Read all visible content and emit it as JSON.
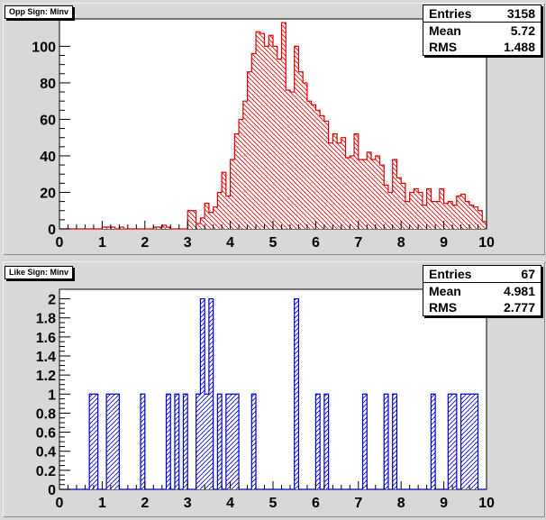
{
  "chart_data": [
    {
      "type": "histogram",
      "title": "Opp Sign: Minv",
      "stats": {
        "entries_label": "Entries",
        "entries": "3158",
        "mean_label": "Mean",
        "mean": "5.72",
        "rms_label": "RMS",
        "rms": "1.488"
      },
      "xlim": [
        0,
        10
      ],
      "ylim": [
        0,
        115
      ],
      "bin_width": 0.1,
      "xticks": [
        "0",
        "1",
        "2",
        "3",
        "4",
        "5",
        "6",
        "7",
        "8",
        "9",
        "10"
      ],
      "yticks": [
        "0",
        "20",
        "40",
        "60",
        "80",
        "100"
      ],
      "ytick_values": [
        0,
        20,
        40,
        60,
        80,
        100
      ],
      "color": "#dd0000",
      "values": [
        0,
        0,
        0,
        0,
        0,
        0,
        0,
        0,
        0,
        0,
        1,
        1,
        1,
        0,
        1,
        0,
        0,
        0,
        0,
        0,
        0,
        0,
        1,
        1,
        2,
        1,
        0,
        0,
        0,
        0,
        10,
        10,
        3,
        6,
        14,
        9,
        12,
        20,
        31,
        18,
        38,
        52,
        60,
        70,
        86,
        96,
        108,
        107,
        100,
        106,
        100,
        93,
        113,
        76,
        75,
        100,
        86,
        80,
        70,
        68,
        65,
        62,
        59,
        47,
        52,
        47,
        50,
        39,
        40,
        52,
        38,
        38,
        42,
        38,
        40,
        35,
        24,
        20,
        38,
        28,
        25,
        15,
        20,
        22,
        20,
        13,
        22,
        15,
        15,
        22,
        14,
        15,
        13,
        18,
        19,
        15,
        13,
        12,
        10,
        4
      ]
    },
    {
      "type": "histogram",
      "title": "Like Sign: Minv",
      "stats": {
        "entries_label": "Entries",
        "entries": "67",
        "mean_label": "Mean",
        "mean": "4.981",
        "rms_label": "RMS",
        "rms": "2.777"
      },
      "xlim": [
        0,
        10
      ],
      "ylim": [
        0,
        2.1
      ],
      "bin_width": 0.1,
      "xticks": [
        "0",
        "1",
        "2",
        "3",
        "4",
        "5",
        "6",
        "7",
        "8",
        "9",
        "10"
      ],
      "yticks": [
        "0",
        "0.2",
        "0.4",
        "0.6",
        "0.8",
        "1",
        "1.2",
        "1.4",
        "1.6",
        "1.8",
        "2"
      ],
      "ytick_values": [
        0,
        0.2,
        0.4,
        0.6,
        0.8,
        1,
        1.2,
        1.4,
        1.6,
        1.8,
        2
      ],
      "color": "#0000cc",
      "values": [
        0,
        0,
        0,
        0,
        0,
        0,
        0,
        1,
        1,
        0,
        0,
        1,
        1,
        1,
        0,
        0,
        0,
        0,
        0,
        1,
        0,
        0,
        0,
        0,
        0,
        1,
        0,
        1,
        0,
        1,
        0,
        0,
        1,
        2,
        1,
        2,
        0,
        1,
        0,
        1,
        1,
        1,
        0,
        0,
        0,
        1,
        0,
        0,
        0,
        0,
        0,
        0,
        0,
        0,
        0,
        2,
        0,
        0,
        0,
        0,
        1,
        0,
        1,
        0,
        0,
        0,
        0,
        0,
        0,
        0,
        0,
        1,
        0,
        0,
        0,
        0,
        1,
        0,
        1,
        0,
        0,
        0,
        0,
        0,
        0,
        0,
        0,
        1,
        0,
        0,
        0,
        1,
        1,
        0,
        1,
        1,
        1,
        1,
        0,
        0
      ]
    }
  ]
}
